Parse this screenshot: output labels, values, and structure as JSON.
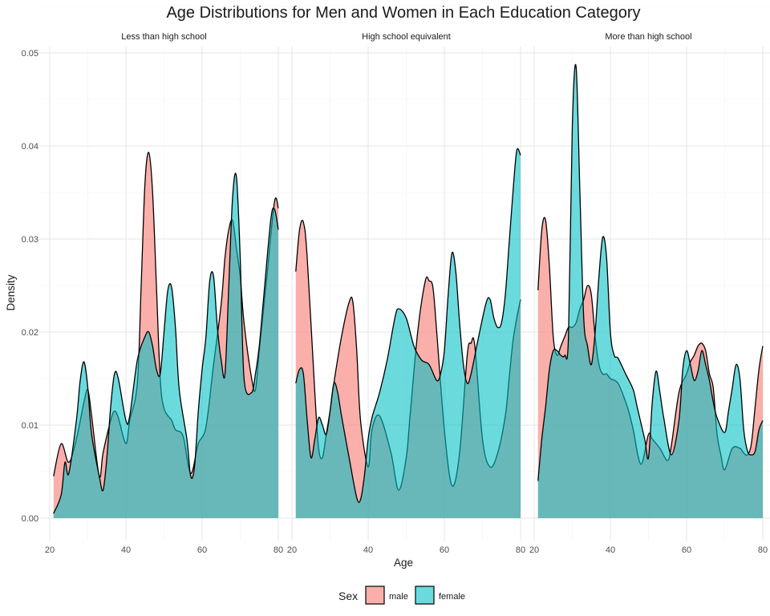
{
  "chart_data": {
    "type": "area",
    "title": "Age Distributions for Men and Women in Each Education Category",
    "xlabel": "Age",
    "ylabel": "Density",
    "xlim": [
      20,
      80
    ],
    "ylim": [
      0,
      0.05
    ],
    "x_ticks": [
      "20",
      "40",
      "60",
      "80"
    ],
    "y_ticks": [
      "0.00",
      "0.01",
      "0.02",
      "0.03",
      "0.04",
      "0.05"
    ],
    "grid": true,
    "legend": {
      "title": "Sex",
      "position": "bottom",
      "entries": [
        {
          "label": "male",
          "color": "#F8766D"
        },
        {
          "label": "female",
          "color": "#00BFC4"
        }
      ]
    },
    "facets": [
      {
        "label": "Less than high school",
        "series": [
          {
            "name": "male",
            "x": [
              21,
              23,
              25,
              27,
              29,
              30,
              31,
              33,
              34,
              36,
              37,
              38,
              40,
              41,
              43,
              44,
              45,
              46,
              47,
              48,
              49,
              50,
              52,
              53,
              55,
              57,
              59,
              61,
              63,
              65,
              66,
              67,
              68,
              69,
              70,
              71,
              73,
              74,
              75,
              77,
              79,
              80
            ],
            "y": [
              0.0045,
              0.008,
              0.006,
              0.0085,
              0.0125,
              0.0138,
              0.011,
              0.0045,
              0.007,
              0.0105,
              0.0115,
              0.0108,
              0.008,
              0.0105,
              0.0145,
              0.025,
              0.036,
              0.0393,
              0.035,
              0.025,
              0.015,
              0.0118,
              0.0105,
              0.0095,
              0.0088,
              0.0048,
              0.008,
              0.0098,
              0.0165,
              0.023,
              0.028,
              0.031,
              0.032,
              0.029,
              0.026,
              0.021,
              0.015,
              0.0138,
              0.018,
              0.026,
              0.034,
              0.0333
            ]
          },
          {
            "name": "female",
            "x": [
              21,
              23,
              24,
              25,
              27,
              28,
              29,
              30,
              31,
              33,
              34,
              35,
              36,
              37,
              38,
              40,
              41,
              43,
              45,
              46,
              47,
              48,
              49,
              50,
              51,
              52,
              53,
              54,
              56,
              57,
              58,
              59,
              60,
              61,
              62,
              63,
              64,
              65,
              66,
              67,
              68,
              69,
              70,
              71,
              73,
              74,
              75,
              76,
              78,
              79,
              80
            ],
            "y": [
              0.0005,
              0.0025,
              0.006,
              0.0048,
              0.0105,
              0.0148,
              0.0168,
              0.014,
              0.009,
              0.0045,
              0.003,
              0.0065,
              0.012,
              0.0155,
              0.015,
              0.0105,
              0.011,
              0.017,
              0.0195,
              0.02,
              0.0185,
              0.016,
              0.0155,
              0.02,
              0.0245,
              0.0248,
              0.0205,
              0.0138,
              0.0085,
              0.0045,
              0.0055,
              0.0115,
              0.016,
              0.0195,
              0.0255,
              0.026,
              0.0205,
              0.017,
              0.0155,
              0.025,
              0.0345,
              0.0367,
              0.028,
              0.015,
              0.0135,
              0.0155,
              0.0185,
              0.023,
              0.032,
              0.0332,
              0.031
            ]
          }
        ]
      },
      {
        "label": "High school equivalent",
        "series": [
          {
            "name": "male",
            "x": [
              21,
              22,
              23,
              24,
              26,
              27,
              28,
              29,
              30,
              31,
              33,
              35,
              36,
              37,
              38,
              40,
              41,
              43,
              46,
              48,
              50,
              51,
              53,
              55,
              56,
              57,
              58,
              60,
              62,
              64,
              66,
              67,
              68,
              70,
              72,
              74,
              76,
              77,
              78,
              79,
              80
            ],
            "y": [
              0.0265,
              0.031,
              0.0318,
              0.028,
              0.0135,
              0.0075,
              0.0065,
              0.009,
              0.0115,
              0.0145,
              0.0195,
              0.0232,
              0.0232,
              0.018,
              0.0105,
              0.0055,
              0.0095,
              0.011,
              0.007,
              0.003,
              0.0065,
              0.011,
              0.02,
              0.0255,
              0.0255,
              0.0248,
              0.02,
              0.0095,
              0.0035,
              0.007,
              0.0175,
              0.0188,
              0.0185,
              0.0085,
              0.0055,
              0.007,
              0.011,
              0.015,
              0.019,
              0.0215,
              0.0235
            ]
          },
          {
            "name": "female",
            "x": [
              21,
              22,
              23,
              24,
              25,
              26,
              27,
              28,
              29,
              30,
              31,
              32,
              33,
              35,
              37,
              38,
              39,
              40,
              41,
              43,
              45,
              47,
              48,
              50,
              52,
              54,
              56,
              58,
              59,
              60,
              61,
              62,
              63,
              64,
              65,
              66,
              67,
              69,
              71,
              72,
              73,
              74,
              75,
              76,
              77,
              78,
              79,
              80
            ],
            "y": [
              0.0145,
              0.016,
              0.0155,
              0.0105,
              0.0065,
              0.0085,
              0.0108,
              0.01,
              0.009,
              0.0115,
              0.0145,
              0.0135,
              0.011,
              0.0065,
              0.0022,
              0.002,
              0.0045,
              0.0085,
              0.0108,
              0.0135,
              0.017,
              0.0215,
              0.0225,
              0.0215,
              0.0185,
              0.017,
              0.0165,
              0.0148,
              0.0155,
              0.018,
              0.024,
              0.0285,
              0.0265,
              0.021,
              0.0165,
              0.0145,
              0.0155,
              0.0195,
              0.0232,
              0.0235,
              0.0215,
              0.0205,
              0.021,
              0.024,
              0.0295,
              0.035,
              0.0395,
              0.039
            ]
          }
        ]
      },
      {
        "label": "More than high school",
        "series": [
          {
            "name": "male",
            "x": [
              21,
              22,
              23,
              24,
              25,
              26,
              27,
              28,
              29,
              30,
              31,
              32,
              33,
              34,
              35,
              36,
              37,
              38,
              39,
              40,
              42,
              44,
              45,
              46,
              48,
              50,
              51,
              53,
              55,
              56,
              58,
              60,
              61,
              62,
              63,
              64,
              65,
              66,
              67,
              68,
              69,
              70,
              72,
              74,
              75,
              76,
              77,
              78,
              79,
              80
            ],
            "y": [
              0.0245,
              0.031,
              0.032,
              0.027,
              0.0195,
              0.0175,
              0.0185,
              0.0195,
              0.0205,
              0.0205,
              0.021,
              0.0225,
              0.0235,
              0.025,
              0.024,
              0.0195,
              0.0165,
              0.0155,
              0.0155,
              0.015,
              0.0145,
              0.0125,
              0.0112,
              0.0095,
              0.0058,
              0.009,
              0.0085,
              0.0075,
              0.0062,
              0.0078,
              0.0135,
              0.0155,
              0.0168,
              0.0175,
              0.0185,
              0.0188,
              0.018,
              0.0155,
              0.014,
              0.009,
              0.0068,
              0.0052,
              0.0075,
              0.0075,
              0.007,
              0.0068,
              0.008,
              0.012,
              0.016,
              0.0185
            ]
          },
          {
            "name": "female",
            "x": [
              21,
              22,
              23,
              24,
              25,
              26,
              27,
              28,
              29,
              30,
              31,
              32,
              33,
              34,
              35,
              36,
              37,
              38,
              39,
              40,
              41,
              42,
              44,
              46,
              47,
              49,
              50,
              51,
              52,
              53,
              54,
              56,
              58,
              59,
              60,
              61,
              62,
              63,
              64,
              65,
              66,
              67,
              68,
              70,
              71,
              72,
              73,
              74,
              75,
              76,
              77,
              78,
              79,
              80
            ],
            "y": [
              0.004,
              0.0085,
              0.012,
              0.016,
              0.018,
              0.018,
              0.0175,
              0.0175,
              0.0195,
              0.042,
              0.0485,
              0.035,
              0.0215,
              0.0185,
              0.0165,
              0.02,
              0.026,
              0.0302,
              0.028,
              0.02,
              0.0175,
              0.0172,
              0.0155,
              0.0138,
              0.012,
              0.0085,
              0.0065,
              0.0125,
              0.0158,
              0.0135,
              0.0108,
              0.0068,
              0.0105,
              0.016,
              0.018,
              0.0165,
              0.0148,
              0.0158,
              0.018,
              0.0165,
              0.0148,
              0.0125,
              0.0108,
              0.0092,
              0.0115,
              0.014,
              0.0165,
              0.015,
              0.0095,
              0.0072,
              0.0068,
              0.0072,
              0.0095,
              0.0105
            ]
          }
        ]
      }
    ]
  }
}
